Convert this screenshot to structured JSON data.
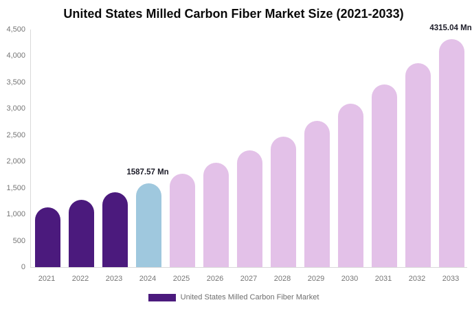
{
  "title": "United States Milled Carbon Fiber Market Size (2021-2033)",
  "legend": {
    "label": "United States Milled Carbon Fiber Market"
  },
  "colors": {
    "historical": "#4B1A7D",
    "current": "#9FC8DE",
    "forecast": "#E3C1E8",
    "axis_line": "#D9D9D9",
    "tick_label": "#757575",
    "annotation_text": "#1C1C28",
    "title_text": "#0A0A0A",
    "legend_text": "#6E6E6E",
    "background": "#FFFFFF"
  },
  "chart_data": {
    "type": "bar",
    "title": "United States Milled Carbon Fiber Market Size (2021-2033)",
    "unit": "Mn",
    "categories": [
      "2021",
      "2022",
      "2023",
      "2024",
      "2025",
      "2026",
      "2027",
      "2028",
      "2029",
      "2030",
      "2031",
      "2032",
      "2033"
    ],
    "values": [
      1138,
      1271,
      1421,
      1587.57,
      1774,
      1983,
      2215,
      2476,
      2767,
      3091,
      3454,
      3861,
      4315.04
    ],
    "bar_roles": [
      "historical",
      "historical",
      "historical",
      "current",
      "forecast",
      "forecast",
      "forecast",
      "forecast",
      "forecast",
      "forecast",
      "forecast",
      "forecast",
      "forecast"
    ],
    "ylim": [
      0,
      4500
    ],
    "ytick_step": 500,
    "ytick_labels": [
      "0",
      "500",
      "1,000",
      "1,500",
      "2,000",
      "2,500",
      "3,000",
      "3,500",
      "4,000",
      "4,500"
    ],
    "grid": false,
    "legend_position": "bottom",
    "legend_entries": [
      "United States Milled Carbon Fiber Market"
    ],
    "annotations": [
      {
        "category": "2024",
        "text": "1587.57 Mn"
      },
      {
        "category": "2033",
        "text": "4315.04 Mn"
      }
    ]
  }
}
